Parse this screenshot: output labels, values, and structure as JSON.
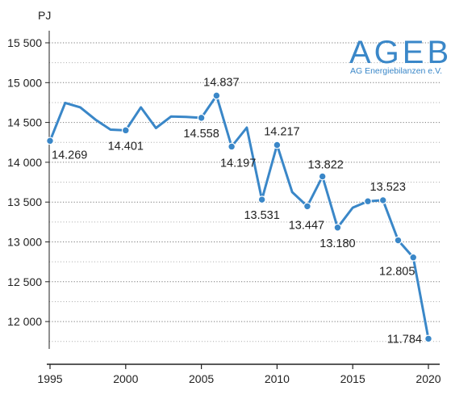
{
  "chart_data": {
    "type": "line",
    "title": "",
    "xlabel": "",
    "ylabel": "PJ",
    "xlim": [
      1995,
      2020
    ],
    "ylim": [
      11700,
      15700
    ],
    "grid": "dotted horizontal",
    "color": "#3a87c8",
    "x_ticks": [
      1995,
      2000,
      2005,
      2010,
      2015,
      2020
    ],
    "x_tick_labels": [
      "1995",
      "2000",
      "2005",
      "2010",
      "2015",
      "2020"
    ],
    "y_ticks": [
      12000,
      12500,
      13000,
      13500,
      14000,
      14500,
      15000,
      15500
    ],
    "y_tick_labels": [
      "12 000",
      "12 500",
      "13 000",
      "13 500",
      "14 000",
      "14 500",
      "15 000",
      "15 500"
    ],
    "series": [
      {
        "values": [
          {
            "x": 1995,
            "y": 14269
          },
          {
            "x": 1996,
            "y": 14745
          },
          {
            "x": 1997,
            "y": 14690
          },
          {
            "x": 1998,
            "y": 14535
          },
          {
            "x": 1999,
            "y": 14410
          },
          {
            "x": 2000,
            "y": 14401
          },
          {
            "x": 2001,
            "y": 14690
          },
          {
            "x": 2002,
            "y": 14430
          },
          {
            "x": 2003,
            "y": 14575
          },
          {
            "x": 2004,
            "y": 14570
          },
          {
            "x": 2005,
            "y": 14558
          },
          {
            "x": 2006,
            "y": 14837
          },
          {
            "x": 2007,
            "y": 14197
          },
          {
            "x": 2008,
            "y": 14435
          },
          {
            "x": 2009,
            "y": 13531
          },
          {
            "x": 2010,
            "y": 14217
          },
          {
            "x": 2011,
            "y": 13625
          },
          {
            "x": 2012,
            "y": 13447
          },
          {
            "x": 2013,
            "y": 13822
          },
          {
            "x": 2014,
            "y": 13180
          },
          {
            "x": 2015,
            "y": 13430
          },
          {
            "x": 2016,
            "y": 13510
          },
          {
            "x": 2017,
            "y": 13523
          },
          {
            "x": 2018,
            "y": 13020
          },
          {
            "x": 2019,
            "y": 12805
          },
          {
            "x": 2020,
            "y": 11784
          }
        ]
      }
    ],
    "markers_at_years": [
      1995,
      2000,
      2005,
      2006,
      2007,
      2009,
      2010,
      2012,
      2013,
      2014,
      2016,
      2017,
      2018,
      2019,
      2020
    ],
    "data_labels": [
      {
        "x": 1995,
        "text": "14.269",
        "placement": "below-right"
      },
      {
        "x": 2000,
        "text": "14.401",
        "placement": "below"
      },
      {
        "x": 2005,
        "text": "14.558",
        "placement": "below"
      },
      {
        "x": 2006,
        "text": "14.837",
        "placement": "above"
      },
      {
        "x": 2007,
        "text": "14.197",
        "placement": "below"
      },
      {
        "x": 2009,
        "text": "13.531",
        "placement": "below"
      },
      {
        "x": 2010,
        "text": "14.217",
        "placement": "above"
      },
      {
        "x": 2012,
        "text": "13.447",
        "placement": "below"
      },
      {
        "x": 2013,
        "text": "13.822",
        "placement": "above"
      },
      {
        "x": 2014,
        "text": "13.180",
        "placement": "below"
      },
      {
        "x": 2017,
        "text": "13.523",
        "placement": "above"
      },
      {
        "x": 2019,
        "text": "12.805",
        "placement": "below-left"
      },
      {
        "x": 2020,
        "text": "11.784",
        "placement": "left"
      }
    ]
  },
  "logo": {
    "name": "AGEB",
    "subtitle": "AG Energiebilanzen e.V.",
    "color": "#3a87c8"
  }
}
